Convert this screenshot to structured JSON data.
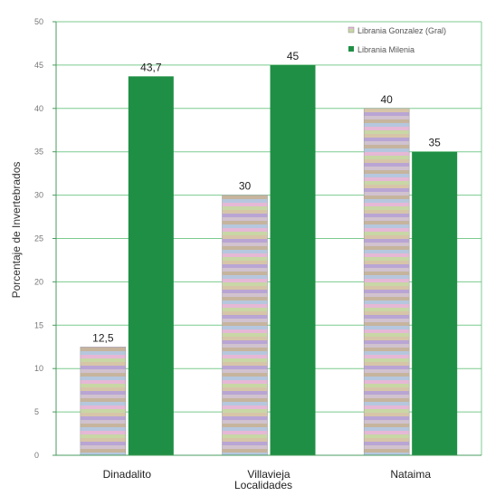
{
  "chart_data": {
    "type": "bar",
    "title": "",
    "xlabel": "Localidades",
    "ylabel": "Porcentaje de Invertebrados",
    "categories": [
      "Dinadalito",
      "Villavieja",
      "Nataima"
    ],
    "series": [
      {
        "name": "Librania Gonzalez (Gral)",
        "values": [
          12.5,
          30,
          40
        ],
        "value_labels": [
          "12,5",
          "30",
          "40"
        ],
        "color": "#c8b9c6"
      },
      {
        "name": "Librania Milenia",
        "values": [
          43.7,
          45,
          35
        ],
        "value_labels": [
          "43,7",
          "45",
          "35"
        ],
        "color": "#1f8f45"
      }
    ],
    "ylim": [
      0,
      50
    ],
    "yticks": [
      0,
      5,
      10,
      15,
      20,
      25,
      30,
      35,
      40,
      45,
      50
    ],
    "grid": true,
    "legend_position": "top-right"
  },
  "colors": {
    "grid": "#7ccb8f",
    "axis": "#4a9b5d"
  }
}
